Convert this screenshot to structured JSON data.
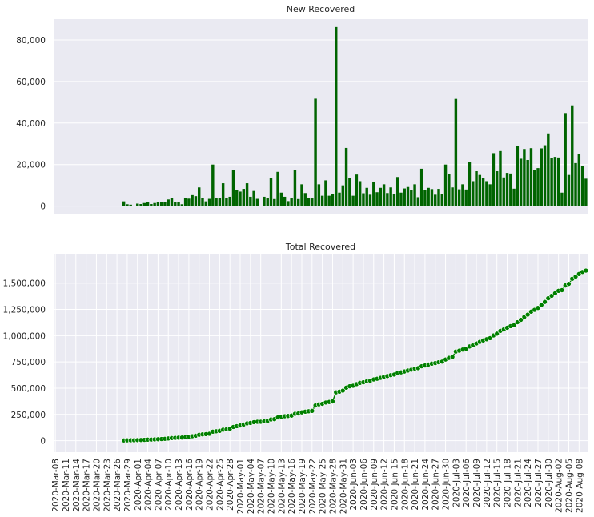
{
  "chart_data": [
    {
      "type": "bar",
      "title": "New Recovered",
      "color": "#006400",
      "ylim": [
        -4000,
        90000
      ],
      "yticks": [
        0,
        20000,
        40000,
        60000,
        80000
      ],
      "ytick_labels": [
        "0",
        "20,000",
        "40,000",
        "60,000",
        "80,000"
      ],
      "grid": true,
      "start_date": "2020-03-08",
      "values": [
        0,
        0,
        0,
        0,
        0,
        0,
        0,
        0,
        0,
        0,
        0,
        0,
        0,
        0,
        0,
        0,
        0,
        0,
        0,
        0,
        2300,
        900,
        700,
        0,
        1200,
        1000,
        1500,
        1800,
        1000,
        1500,
        1800,
        1800,
        2000,
        3200,
        4000,
        2000,
        1800,
        900,
        3800,
        3600,
        5300,
        4800,
        9000,
        4000,
        2300,
        3500,
        20000,
        4000,
        3800,
        11000,
        3800,
        4500,
        17500,
        7700,
        7000,
        8300,
        11000,
        4500,
        7300,
        3500,
        200,
        4500,
        3700,
        13500,
        3400,
        16500,
        6500,
        4500,
        2400,
        3900,
        17200,
        3400,
        10500,
        6300,
        3900,
        3700,
        51700,
        10500,
        5000,
        12400,
        5000,
        5700,
        86200,
        6500,
        10000,
        28000,
        13500,
        5000,
        15200,
        12000,
        6200,
        8800,
        5500,
        11800,
        6700,
        8800,
        10500,
        6300,
        9000,
        5800,
        14000,
        6500,
        8500,
        9200,
        7700,
        10500,
        4300,
        18000,
        7800,
        8800,
        8200,
        5500,
        8300,
        5800,
        20000,
        15500,
        9000,
        51600,
        8100,
        10500,
        8000,
        21300,
        12000,
        16800,
        15000,
        13500,
        12000,
        10500,
        25500,
        16800,
        26500,
        13800,
        16000,
        15700,
        8400,
        28800,
        22800,
        27500,
        22200,
        27900,
        17500,
        18300,
        27800,
        29300,
        35000,
        23200,
        23700,
        23400,
        6500,
        44800,
        15000,
        48500,
        20700,
        25000,
        19200,
        13200
      ]
    },
    {
      "type": "line",
      "title": "Total Recovered",
      "color": "#008000",
      "marker": "circle",
      "ylim": [
        -110000,
        1780000
      ],
      "yticks": [
        0,
        250000,
        500000,
        750000,
        1000000,
        1250000,
        1500000
      ],
      "ytick_labels": [
        "0",
        "250,000",
        "500,000",
        "750,000",
        "1,000,000",
        "1,250,000",
        "1,500,000"
      ],
      "grid": true,
      "start_date": "2020-03-08",
      "first_shown_index": 20,
      "x_tick_labels": [
        "2020-Mar-08",
        "2020-Mar-11",
        "2020-Mar-14",
        "2020-Mar-17",
        "2020-Mar-20",
        "2020-Mar-23",
        "2020-Mar-26",
        "2020-Mar-29",
        "2020-Apr-01",
        "2020-Apr-04",
        "2020-Apr-07",
        "2020-Apr-10",
        "2020-Apr-13",
        "2020-Apr-16",
        "2020-Apr-19",
        "2020-Apr-22",
        "2020-Apr-25",
        "2020-Apr-28",
        "2020-May-01",
        "2020-May-04",
        "2020-May-07",
        "2020-May-10",
        "2020-May-13",
        "2020-May-16",
        "2020-May-19",
        "2020-May-22",
        "2020-May-25",
        "2020-May-28",
        "2020-May-31",
        "2020-Jun-03",
        "2020-Jun-06",
        "2020-Jun-09",
        "2020-Jun-12",
        "2020-Jun-15",
        "2020-Jun-18",
        "2020-Jun-21",
        "2020-Jun-24",
        "2020-Jun-27",
        "2020-Jun-30",
        "2020-Jul-03",
        "2020-Jul-06",
        "2020-Jul-09",
        "2020-Jul-12",
        "2020-Jul-15",
        "2020-Jul-18",
        "2020-Jul-21",
        "2020-Jul-24",
        "2020-Jul-27",
        "2020-Jul-30",
        "2020-Aug-02",
        "2020-Aug-05",
        "2020-Aug-08"
      ]
    }
  ]
}
